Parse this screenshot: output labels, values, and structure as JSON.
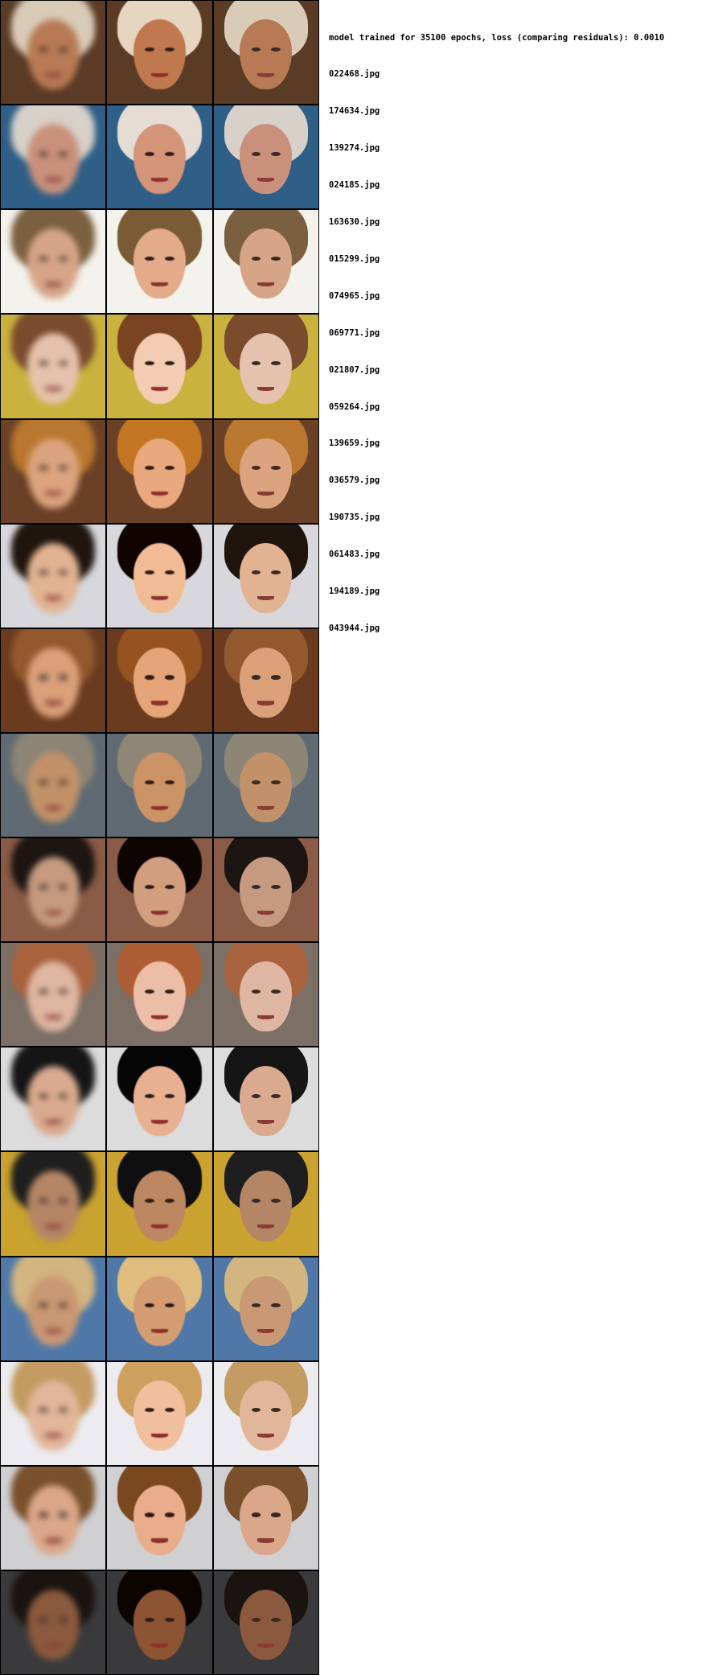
{
  "header": "model trained for 35100 epochs, loss (comparing residuals): 0.0010",
  "files": [
    "022468.jpg",
    "174634.jpg",
    "139274.jpg",
    "024185.jpg",
    "163630.jpg",
    "015299.jpg",
    "074965.jpg",
    "069771.jpg",
    "021807.jpg",
    "059264.jpg",
    "139659.jpg",
    "036579.jpg",
    "190735.jpg",
    "061483.jpg",
    "194189.jpg",
    "043944.jpg"
  ],
  "rows": [
    {
      "bg": "#5a3b26",
      "hair": "#d9cbb8",
      "skin": "#b87a55"
    },
    {
      "bg": "#2f5f86",
      "hair": "#d8d1c9",
      "skin": "#c9917b"
    },
    {
      "bg": "#f4f2ec",
      "hair": "#7a6040",
      "skin": "#d6a588"
    },
    {
      "bg": "#c9b23d",
      "hair": "#7b4b2e",
      "skin": "#e5c2ad"
    },
    {
      "bg": "#6a4027",
      "hair": "#b9772f",
      "skin": "#dba37e"
    },
    {
      "bg": "#d8d8dc",
      "hair": "#1f140e",
      "skin": "#e1b392"
    },
    {
      "bg": "#6b3b20",
      "hair": "#93582d",
      "skin": "#d9a07a"
    },
    {
      "bg": "#5f6a72",
      "hair": "#8d8576",
      "skin": "#c29169"
    },
    {
      "bg": "#8a5b46",
      "hair": "#1c1512",
      "skin": "#c69a80"
    },
    {
      "bg": "#7b6f66",
      "hair": "#a8623e",
      "skin": "#dfb6a2"
    },
    {
      "bg": "#dcdcdc",
      "hair": "#151515",
      "skin": "#d9aa8f"
    },
    {
      "bg": "#c9a230",
      "hair": "#1e1e1e",
      "skin": "#b58666"
    },
    {
      "bg": "#4f78a8",
      "hair": "#d3b57f",
      "skin": "#c99874"
    },
    {
      "bg": "#ececf0",
      "hair": "#c49b62",
      "skin": "#e2b69a"
    },
    {
      "bg": "#d0d0d2",
      "hair": "#7a4f2b",
      "skin": "#dba78a"
    },
    {
      "bg": "#3a3a3c",
      "hair": "#1a1410",
      "skin": "#8b5a3e"
    }
  ],
  "columns": [
    "blur",
    "mid",
    "sharp"
  ]
}
